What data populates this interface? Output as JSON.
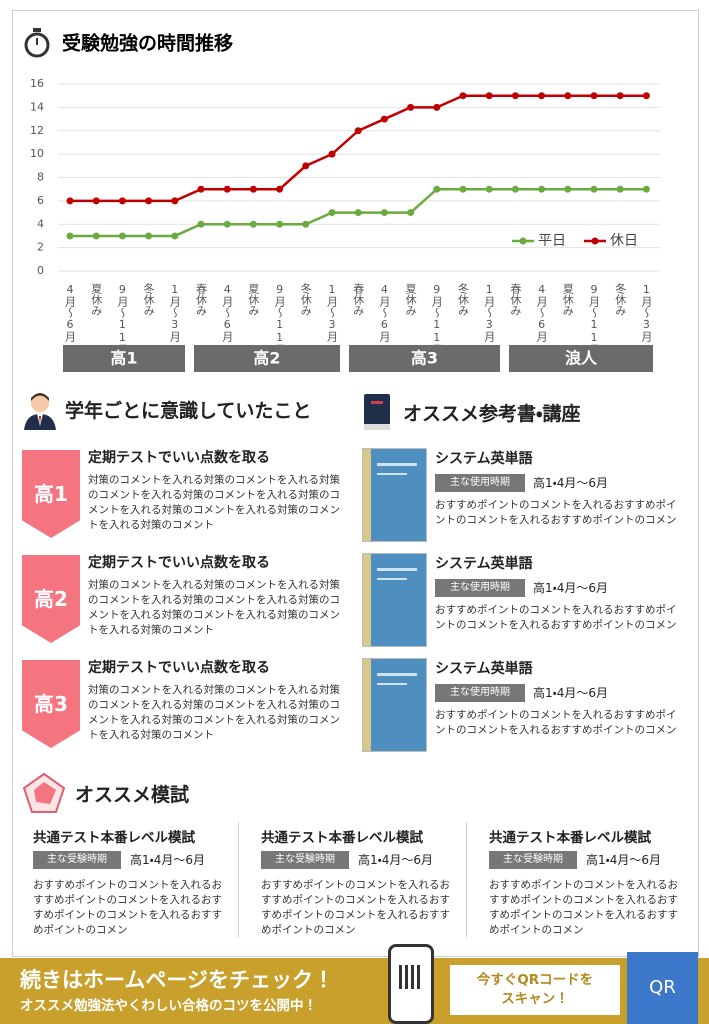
{
  "chart_data": {
    "type": "line",
    "title": "受験勉強の時間推移",
    "categories": [
      "4月〜6月",
      "夏休み",
      "9月〜11月",
      "冬休み",
      "1月〜3月",
      "春休み",
      "4月〜6月",
      "夏休み",
      "9月〜11月",
      "冬休み",
      "1月〜3月",
      "春休み",
      "4月〜6月",
      "夏休み",
      "9月〜11月",
      "冬休み",
      "1月〜3月",
      "春休み",
      "4月〜6月",
      "夏休み",
      "9月〜11月",
      "冬休み",
      "1月〜3月"
    ],
    "series": [
      {
        "name": "平日",
        "color": "#6aaa3f",
        "values": [
          3,
          3,
          3,
          3,
          3,
          4,
          4,
          4,
          4,
          4,
          5,
          5,
          5,
          5,
          7,
          7,
          7,
          7,
          7,
          7,
          7,
          7,
          7
        ]
      },
      {
        "name": "休日",
        "color": "#c00000",
        "values": [
          6,
          6,
          6,
          6,
          6,
          7,
          7,
          7,
          7,
          9,
          10,
          12,
          13,
          14,
          14,
          15,
          15,
          15,
          15,
          15,
          15,
          15,
          15
        ]
      }
    ],
    "ylim": [
      0,
      16
    ],
    "yticks": [
      0,
      2,
      4,
      6,
      8,
      10,
      12,
      14,
      16
    ],
    "grid": true,
    "legend": "lower right",
    "groups": [
      "高1",
      "高2",
      "高3",
      "浪人"
    ]
  },
  "awareness": {
    "title": "学年ごとに意識していたこと",
    "items": [
      {
        "grade": "高1",
        "heading": "定期テストでいい点数を取る",
        "text": "対策のコメントを入れる対策のコメントを入れる対策のコメントを入れる対策のコメントを入れる対策のコメントを入れる対策のコメントを入れる対策のコメントを入れる対策のコメント"
      },
      {
        "grade": "高2",
        "heading": "定期テストでいい点数を取る",
        "text": "対策のコメントを入れる対策のコメントを入れる対策のコメントを入れる対策のコメントを入れる対策のコメントを入れる対策のコメントを入れる対策のコメントを入れる対策のコメント"
      },
      {
        "grade": "高3",
        "heading": "定期テストでいい点数を取る",
        "text": "対策のコメントを入れる対策のコメントを入れる対策のコメントを入れる対策のコメントを入れる対策のコメントを入れる対策のコメントを入れる対策のコメントを入れる対策のコメント"
      }
    ]
  },
  "books": {
    "title": "オススメ参考書・講座",
    "items": [
      {
        "title": "システム英単語",
        "tag": "主な使用時期",
        "period": "高1・4月〜6月",
        "text": "おすすめポイントのコメントを入れるおすすめポイントのコメントを入れるおすすめポイントのコメン"
      },
      {
        "title": "システム英単語",
        "tag": "主な使用時期",
        "period": "高1・4月〜6月",
        "text": "おすすめポイントのコメントを入れるおすすめポイントのコメントを入れるおすすめポイントのコメン"
      },
      {
        "title": "システム英単語",
        "tag": "主な使用時期",
        "period": "高1・4月〜6月",
        "text": "おすすめポイントのコメントを入れるおすすめポイントのコメントを入れるおすすめポイントのコメン"
      }
    ]
  },
  "exams": {
    "title": "オススメ模試",
    "items": [
      {
        "title": "共通テスト本番レベル模試",
        "tag": "主な受験時期",
        "period": "高1・4月〜6月",
        "text": "おすすめポイントのコメントを入れるおすすめポイントのコメントを入れるおすすめポイントのコメントを入れるおすすめポイントのコメン"
      },
      {
        "title": "共通テスト本番レベル模試",
        "tag": "主な受験時期",
        "period": "高1・4月〜6月",
        "text": "おすすめポイントのコメントを入れるおすすめポイントのコメントを入れるおすすめポイントのコメントを入れるおすすめポイントのコメン"
      },
      {
        "title": "共通テスト本番レベル模試",
        "tag": "主な受験時期",
        "period": "高1・4月〜6月",
        "text": "おすすめポイントのコメントを入れるおすすめポイントのコメントを入れるおすすめポイントのコメントを入れるおすすめポイントのコメン"
      }
    ]
  },
  "footer": {
    "title": "続きはホームページをチェック！",
    "subtitle": "オススメ勉強法やくわしい合格のコツを公開中！",
    "cta": [
      "今すぐQRコードを",
      "スキャン！"
    ],
    "button": "QR"
  }
}
